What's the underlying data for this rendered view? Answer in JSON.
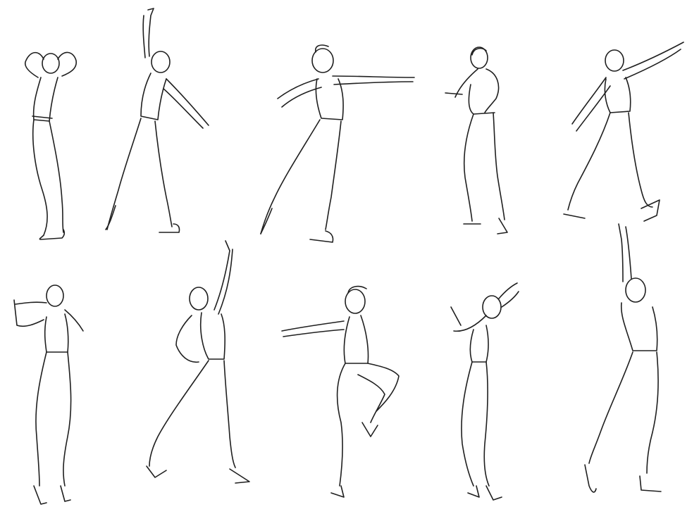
{
  "image": {
    "subject": "line-drawing-dancer-poses",
    "ink_color": "#1f1f1f",
    "background_color": "#ffffff",
    "rows": [
      {
        "figures": [
          "arms-overhead-standing",
          "arm-raised-lunge-back",
          "arm-extended-step",
          "crouched-hands-to-chest",
          "reaching-leap"
        ]
      },
      {
        "figures": [
          "hand-raised-crossed-legs",
          "pointing-up-lunge",
          "passe-knee-raised",
          "hands-behind-head",
          "arms-overhead-lunge"
        ]
      }
    ]
  }
}
